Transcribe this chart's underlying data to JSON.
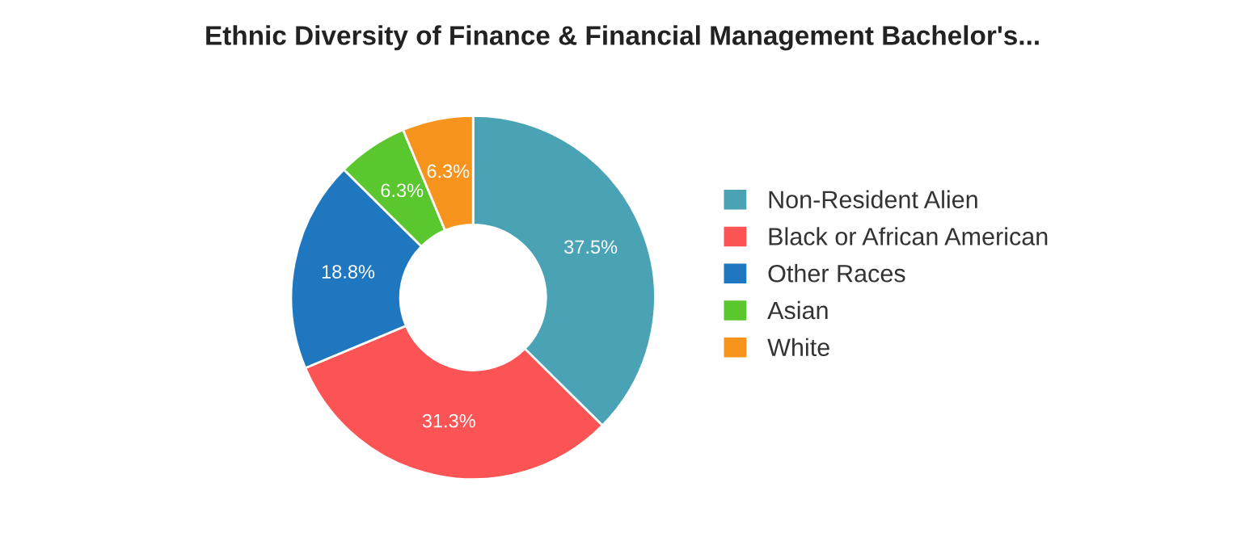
{
  "chart_data": {
    "type": "donut",
    "title": "Ethnic Diversity of Finance & Financial Management Bachelor's...",
    "categories": [
      "Non-Resident Alien",
      "Black or African American",
      "Other Races",
      "Asian",
      "White"
    ],
    "values": [
      37.5,
      31.3,
      18.8,
      6.3,
      6.3
    ],
    "colors": [
      "#4aa3b5",
      "#fc5454",
      "#1f77bf",
      "#5ac72e",
      "#f7941d"
    ],
    "value_labels": [
      "37.5%",
      "31.3%",
      "18.8%",
      "6.3%",
      "6.3%"
    ],
    "legend": "right"
  }
}
